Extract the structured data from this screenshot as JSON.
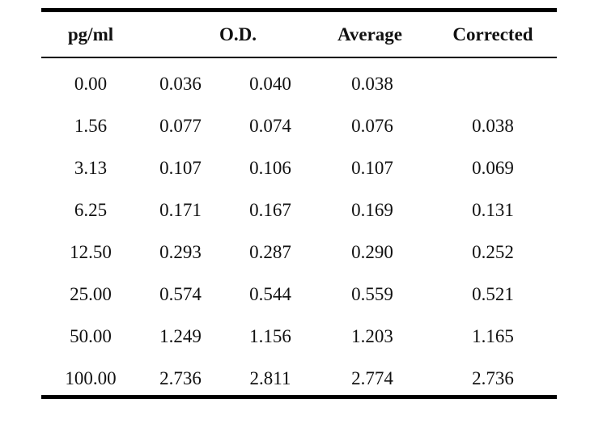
{
  "table": {
    "headers": {
      "conc": "pg/ml",
      "od": "O.D.",
      "average": "Average",
      "corrected": "Corrected"
    },
    "rows": [
      {
        "conc": "0.00",
        "od1": "0.036",
        "od2": "0.040",
        "average": "0.038",
        "corrected": ""
      },
      {
        "conc": "1.56",
        "od1": "0.077",
        "od2": "0.074",
        "average": "0.076",
        "corrected": "0.038"
      },
      {
        "conc": "3.13",
        "od1": "0.107",
        "od2": "0.106",
        "average": "0.107",
        "corrected": "0.069"
      },
      {
        "conc": "6.25",
        "od1": "0.171",
        "od2": "0.167",
        "average": "0.169",
        "corrected": "0.131"
      },
      {
        "conc": "12.50",
        "od1": "0.293",
        "od2": "0.287",
        "average": "0.290",
        "corrected": "0.252"
      },
      {
        "conc": "25.00",
        "od1": "0.574",
        "od2": "0.544",
        "average": "0.559",
        "corrected": "0.521"
      },
      {
        "conc": "50.00",
        "od1": "1.249",
        "od2": "1.156",
        "average": "1.203",
        "corrected": "1.165"
      },
      {
        "conc": "100.00",
        "od1": "2.736",
        "od2": "2.811",
        "average": "2.774",
        "corrected": "2.736"
      }
    ]
  }
}
